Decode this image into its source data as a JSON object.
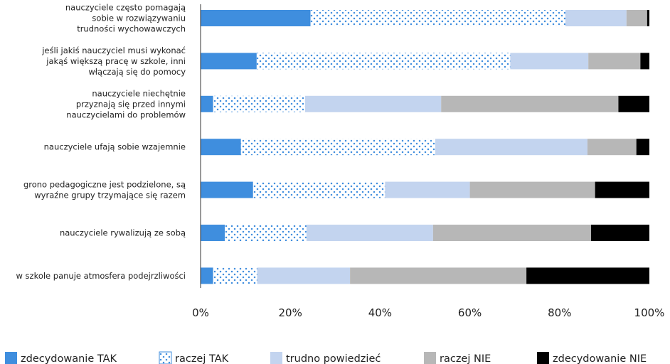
{
  "chart_data": {
    "type": "bar",
    "orientation": "horizontal",
    "stacked": "percent",
    "categories": [
      [
        "nauczyciele często pomagają",
        "sobie w rozwiązywaniu",
        "trudności wychowawczych"
      ],
      [
        "jeśli jakiś nauczyciel musi wykonać",
        "jakąś większą pracę w szkole, inni",
        "włączają się do pomocy"
      ],
      [
        "nauczyciele niechętnie",
        "przyznają się przed innymi",
        "nauczycielami do problemów"
      ],
      [
        "nauczyciele ufają sobie wzajemnie"
      ],
      [
        "grono pedagogiczne jest podzielone, są",
        "wyraźne grupy trzymające się razem"
      ],
      [
        "nauczyciele rywalizują ze sobą"
      ],
      [
        "w szkole panuje atmosfera podejrzliwości"
      ]
    ],
    "series": [
      {
        "name": "zdecydowanie TAK",
        "color": "#3f8ede",
        "pattern": "solid",
        "values": [
          24.5,
          12.5,
          2.8,
          9.0,
          11.7,
          5.4,
          2.8
        ]
      },
      {
        "name": "raczej TAK",
        "color": "#3f8ede",
        "pattern": "dotted",
        "values": [
          56.8,
          56.5,
          20.5,
          43.3,
          29.4,
          18.2,
          9.8
        ]
      },
      {
        "name": "trudno powiedzieć",
        "color": "#c3d4ef",
        "pattern": "solid",
        "values": [
          13.6,
          17.4,
          30.3,
          33.9,
          18.9,
          28.2,
          20.7
        ]
      },
      {
        "name": "raczej NIE",
        "color": "#b7b7b7",
        "pattern": "solid",
        "values": [
          4.6,
          11.6,
          39.5,
          10.9,
          27.9,
          35.2,
          39.3
        ]
      },
      {
        "name": "zdecydowanie NIE",
        "color": "#000000",
        "pattern": "solid",
        "values": [
          0.5,
          2.0,
          6.9,
          2.9,
          12.1,
          13.0,
          27.4
        ]
      }
    ],
    "xticks": [
      "0%",
      "20%",
      "40%",
      "60%",
      "80%",
      "100%"
    ],
    "xlim": [
      0,
      100
    ],
    "grid": false,
    "legend_position": "bottom"
  }
}
